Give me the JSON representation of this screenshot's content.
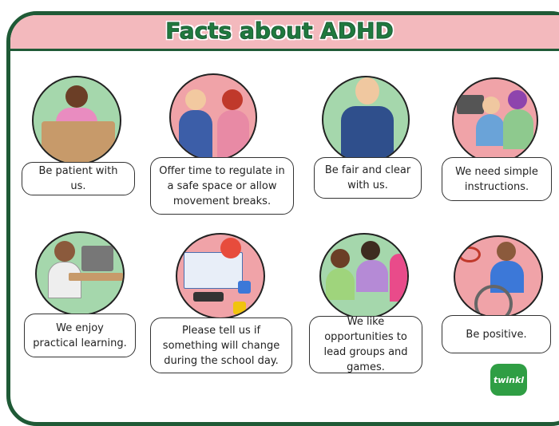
{
  "header": {
    "title": "Facts about ADHD"
  },
  "cards": [
    {
      "text": "Be patient with us."
    },
    {
      "text": "Offer time to regulate in a safe space or allow movement breaks."
    },
    {
      "text": "Be fair and clear with us."
    },
    {
      "text": "We need simple instructions."
    },
    {
      "text": "We enjoy practical learning."
    },
    {
      "text": "Please tell us if something will change during the school day."
    },
    {
      "text": "We like opportunities to lead groups and games."
    },
    {
      "text": "Be positive."
    }
  ],
  "logo": "twinkl"
}
